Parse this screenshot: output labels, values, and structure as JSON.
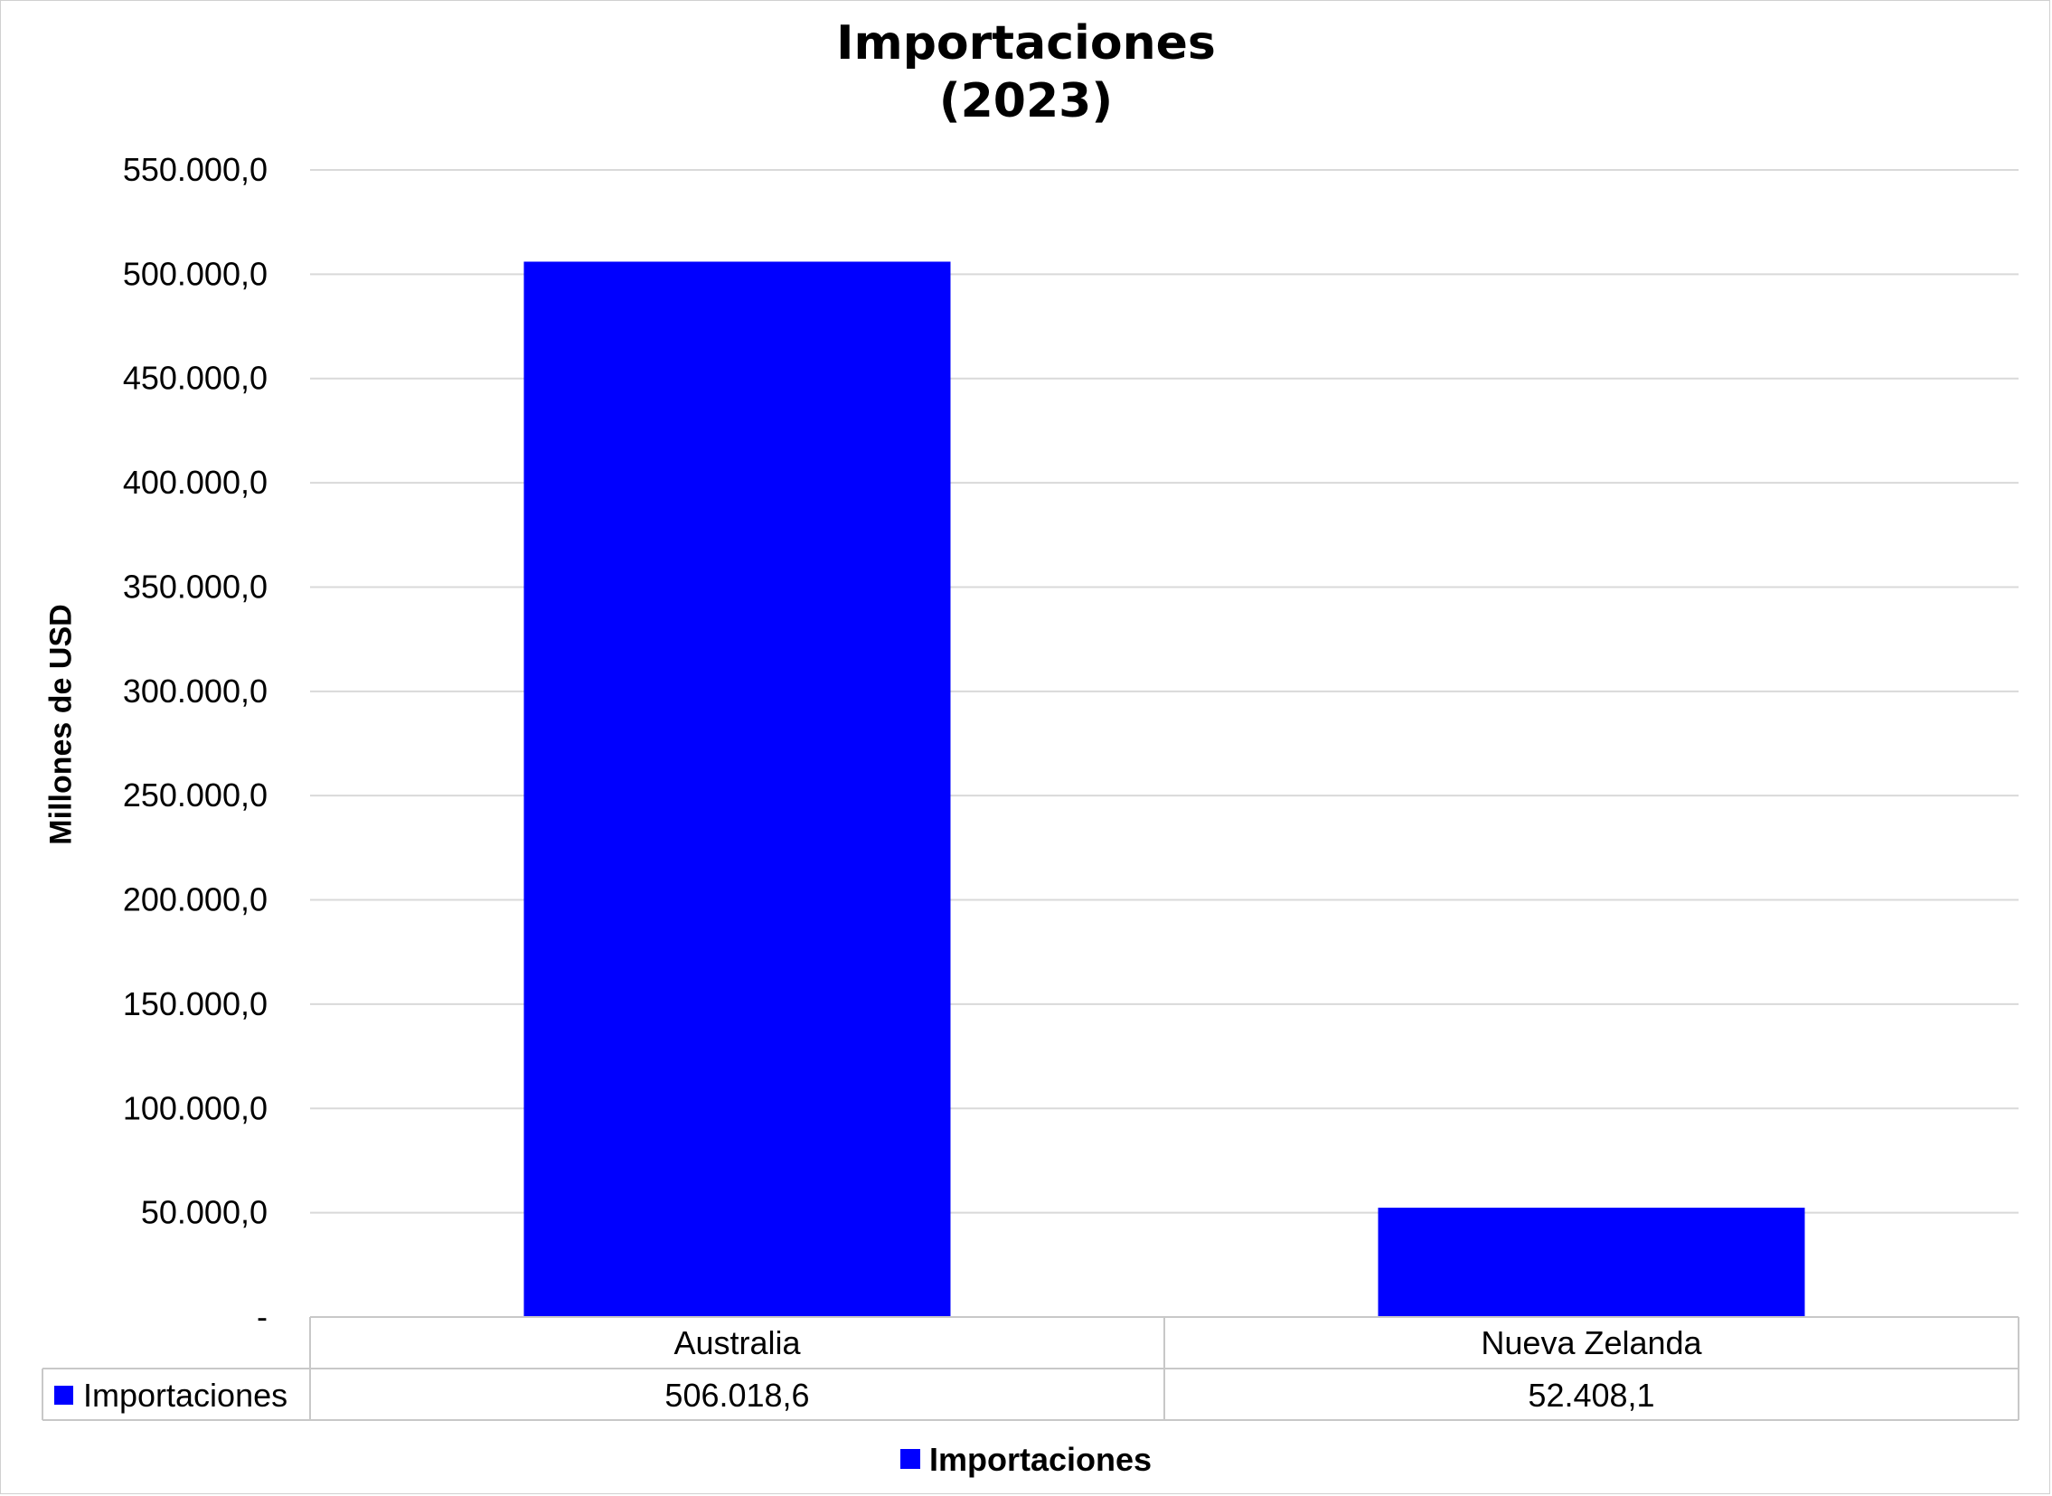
{
  "chart_data": {
    "type": "bar",
    "title": [
      "Importaciones",
      "(2023)"
    ],
    "ylabel": "Millones de USD",
    "xlabel": "",
    "categories": [
      "Australia",
      "Nueva Zelanda"
    ],
    "series": [
      {
        "name": "Importaciones",
        "values": [
          506018.6,
          52408.1
        ],
        "color": "#0000ff"
      }
    ],
    "ylim": [
      0,
      550000
    ],
    "yticks": [
      0,
      50000,
      100000,
      150000,
      200000,
      250000,
      300000,
      350000,
      400000,
      450000,
      500000,
      550000
    ],
    "ytick_labels": [
      "-",
      "50.000,0",
      "100.000,0",
      "150.000,0",
      "200.000,0",
      "250.000,0",
      "300.000,0",
      "350.000,0",
      "400.000,0",
      "450.000,0",
      "500.000,0",
      "550.000,0"
    ],
    "data_table": {
      "row_label": "Importaciones",
      "values": [
        "506.018,6",
        "52.408,1"
      ]
    },
    "grid": true,
    "legend": "bottom"
  },
  "legend": {
    "label": "Importaciones"
  }
}
